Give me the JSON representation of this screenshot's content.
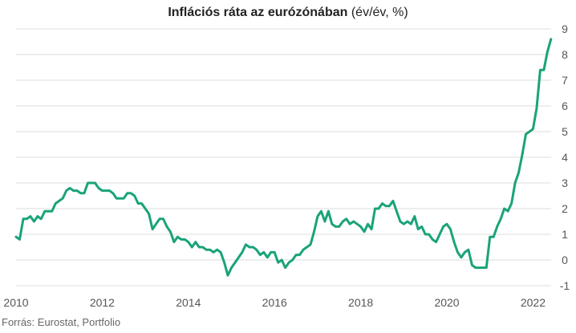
{
  "chart_data": {
    "type": "line",
    "title": "Inflációs ráta az eurózónában",
    "title_unit": "(év/év, %)",
    "source": "Forrás: Eurostat, Portfolio",
    "xlabel": "",
    "ylabel": "",
    "ylim": [
      -1,
      9
    ],
    "xlim": [
      2010.0,
      2022.42
    ],
    "y_ticks": [
      -1,
      0,
      1,
      2,
      3,
      4,
      5,
      6,
      7,
      8,
      9
    ],
    "x_ticks": [
      2010,
      2012,
      2014,
      2016,
      2018,
      2020,
      2022
    ],
    "y_axis_side": "right",
    "grid": "horizontal",
    "line_color": "#1aa37a",
    "grid_color": "#dddddd",
    "series": [
      {
        "x": [
          "2010-01",
          "2010-02",
          "2010-03",
          "2010-04",
          "2010-05",
          "2010-06",
          "2010-07",
          "2010-08",
          "2010-09",
          "2010-10",
          "2010-11",
          "2010-12",
          "2011-01",
          "2011-02",
          "2011-03",
          "2011-04",
          "2011-05",
          "2011-06",
          "2011-07",
          "2011-08",
          "2011-09",
          "2011-10",
          "2011-11",
          "2011-12",
          "2012-01",
          "2012-02",
          "2012-03",
          "2012-04",
          "2012-05",
          "2012-06",
          "2012-07",
          "2012-08",
          "2012-09",
          "2012-10",
          "2012-11",
          "2012-12",
          "2013-01",
          "2013-02",
          "2013-03",
          "2013-04",
          "2013-05",
          "2013-06",
          "2013-07",
          "2013-08",
          "2013-09",
          "2013-10",
          "2013-11",
          "2013-12",
          "2014-01",
          "2014-02",
          "2014-03",
          "2014-04",
          "2014-05",
          "2014-06",
          "2014-07",
          "2014-08",
          "2014-09",
          "2014-10",
          "2014-11",
          "2014-12",
          "2015-01",
          "2015-02",
          "2015-03",
          "2015-04",
          "2015-05",
          "2015-06",
          "2015-07",
          "2015-08",
          "2015-09",
          "2015-10",
          "2015-11",
          "2015-12",
          "2016-01",
          "2016-02",
          "2016-03",
          "2016-04",
          "2016-05",
          "2016-06",
          "2016-07",
          "2016-08",
          "2016-09",
          "2016-10",
          "2016-11",
          "2016-12",
          "2017-01",
          "2017-02",
          "2017-03",
          "2017-04",
          "2017-05",
          "2017-06",
          "2017-07",
          "2017-08",
          "2017-09",
          "2017-10",
          "2017-11",
          "2017-12",
          "2018-01",
          "2018-02",
          "2018-03",
          "2018-04",
          "2018-05",
          "2018-06",
          "2018-07",
          "2018-08",
          "2018-09",
          "2018-10",
          "2018-11",
          "2018-12",
          "2019-01",
          "2019-02",
          "2019-03",
          "2019-04",
          "2019-05",
          "2019-06",
          "2019-07",
          "2019-08",
          "2019-09",
          "2019-10",
          "2019-11",
          "2019-12",
          "2020-01",
          "2020-02",
          "2020-03",
          "2020-04",
          "2020-05",
          "2020-06",
          "2020-07",
          "2020-08",
          "2020-09",
          "2020-10",
          "2020-11",
          "2020-12",
          "2021-01",
          "2021-02",
          "2021-03",
          "2021-04",
          "2021-05",
          "2021-06",
          "2021-07",
          "2021-08",
          "2021-09",
          "2021-10",
          "2021-11",
          "2021-12",
          "2022-01",
          "2022-02",
          "2022-03",
          "2022-04",
          "2022-05",
          "2022-06"
        ],
        "values": [
          0.9,
          0.8,
          1.6,
          1.6,
          1.7,
          1.5,
          1.7,
          1.6,
          1.9,
          1.9,
          1.9,
          2.2,
          2.3,
          2.4,
          2.7,
          2.8,
          2.7,
          2.7,
          2.6,
          2.6,
          3.0,
          3.0,
          3.0,
          2.8,
          2.7,
          2.7,
          2.7,
          2.6,
          2.4,
          2.4,
          2.4,
          2.6,
          2.6,
          2.5,
          2.2,
          2.2,
          2.0,
          1.8,
          1.2,
          1.4,
          1.6,
          1.6,
          1.3,
          1.1,
          0.7,
          0.9,
          0.8,
          0.8,
          0.7,
          0.5,
          0.7,
          0.5,
          0.5,
          0.4,
          0.4,
          0.3,
          0.4,
          0.3,
          -0.1,
          -0.6,
          -0.3,
          -0.1,
          0.1,
          0.3,
          0.6,
          0.5,
          0.5,
          0.4,
          0.2,
          0.3,
          0.1,
          0.3,
          0.3,
          -0.1,
          0.0,
          -0.3,
          -0.1,
          0.0,
          0.2,
          0.2,
          0.4,
          0.5,
          0.6,
          1.1,
          1.7,
          1.9,
          1.5,
          1.9,
          1.4,
          1.3,
          1.3,
          1.5,
          1.6,
          1.4,
          1.5,
          1.4,
          1.3,
          1.1,
          1.4,
          1.2,
          2.0,
          2.0,
          2.2,
          2.1,
          2.1,
          2.3,
          1.9,
          1.5,
          1.4,
          1.5,
          1.4,
          1.7,
          1.2,
          1.3,
          1.0,
          1.0,
          0.8,
          0.7,
          1.0,
          1.3,
          1.4,
          1.2,
          0.7,
          0.3,
          0.1,
          0.3,
          0.4,
          -0.2,
          -0.3,
          -0.3,
          -0.3,
          -0.3,
          0.9,
          0.9,
          1.3,
          1.6,
          2.0,
          1.9,
          2.2,
          3.0,
          3.4,
          4.1,
          4.9,
          5.0,
          5.1,
          5.9,
          7.4,
          7.4,
          8.1,
          8.6
        ]
      }
    ]
  }
}
